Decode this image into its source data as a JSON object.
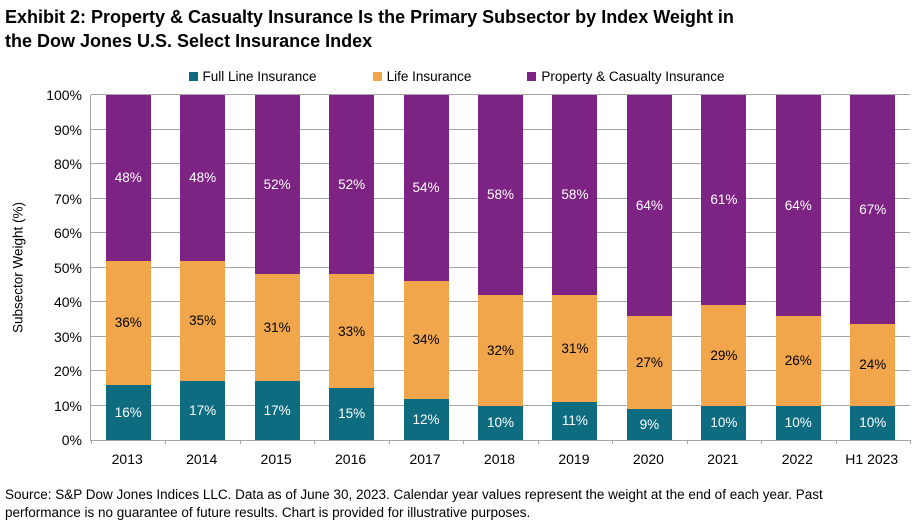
{
  "title": {
    "line1": "Exhibit 2: Property & Casualty Insurance Is the Primary Subsector by Index Weight in",
    "line2": "the Dow Jones U.S. Select Insurance Index"
  },
  "footer": {
    "line1": "Source: S&P Dow Jones Indices LLC. Data as of June 30, 2023. Calendar year values represent the weight at the end of each year.  Past",
    "line2": "performance is no guarantee of future results. Chart is provided for illustrative purposes."
  },
  "chart_data": {
    "type": "bar",
    "stacked": true,
    "title": "Exhibit 2: Property & Casualty Insurance Is the Primary Subsector by Index Weight in the Dow Jones U.S. Select Insurance Index",
    "categories": [
      "2013",
      "2014",
      "2015",
      "2016",
      "2017",
      "2018",
      "2019",
      "2020",
      "2021",
      "2022",
      "H1 2023"
    ],
    "series": [
      {
        "name": "Full Line Insurance",
        "color": "#0E6C80",
        "label_color": "#FFFFFF",
        "values": [
          16,
          17,
          17,
          15,
          12,
          10,
          11,
          9,
          10,
          10,
          10
        ]
      },
      {
        "name": "Life Insurance",
        "color": "#F1A64B",
        "label_color": "#000000",
        "values": [
          36,
          35,
          31,
          33,
          34,
          32,
          31,
          27,
          29,
          26,
          24
        ]
      },
      {
        "name": "Property & Casualty Insurance",
        "color": "#7C2383",
        "label_color": "#FFFFFF",
        "values": [
          48,
          48,
          52,
          52,
          54,
          58,
          58,
          64,
          61,
          64,
          67
        ]
      }
    ],
    "value_label_suffix": "%",
    "xlabel": "",
    "ylabel": "Subsector Weight (%)",
    "ylim": [
      0,
      100
    ],
    "ytick_step": 10,
    "ytick_labels": [
      "0%",
      "10%",
      "20%",
      "30%",
      "40%",
      "50%",
      "60%",
      "70%",
      "80%",
      "90%",
      "100%"
    ],
    "grid": true,
    "gridline_color": "#A6A6A6",
    "legend_position": "top"
  }
}
